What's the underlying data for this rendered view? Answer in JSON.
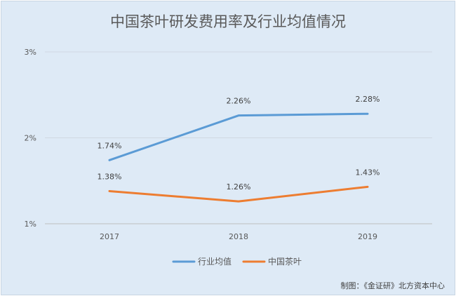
{
  "chart_data": {
    "type": "line",
    "title": "中国茶叶研发费用率及行业均值情况",
    "categories": [
      "2017",
      "2018",
      "2019"
    ],
    "ylim": [
      1,
      3
    ],
    "yticks": [
      "1%",
      "2%",
      "3%"
    ],
    "grid": true,
    "legend_position": "bottom",
    "series": [
      {
        "name": "行业均值",
        "color": "#5b9bd5",
        "values": [
          1.74,
          2.26,
          2.28
        ],
        "labels": [
          "1.74%",
          "2.26%",
          "2.28%"
        ]
      },
      {
        "name": "中国茶叶",
        "color": "#ed7d31",
        "values": [
          1.38,
          1.26,
          1.43
        ],
        "labels": [
          "1.38%",
          "1.26%",
          "1.43%"
        ]
      }
    ],
    "source": "制图：《金证研》北方资本中心"
  }
}
